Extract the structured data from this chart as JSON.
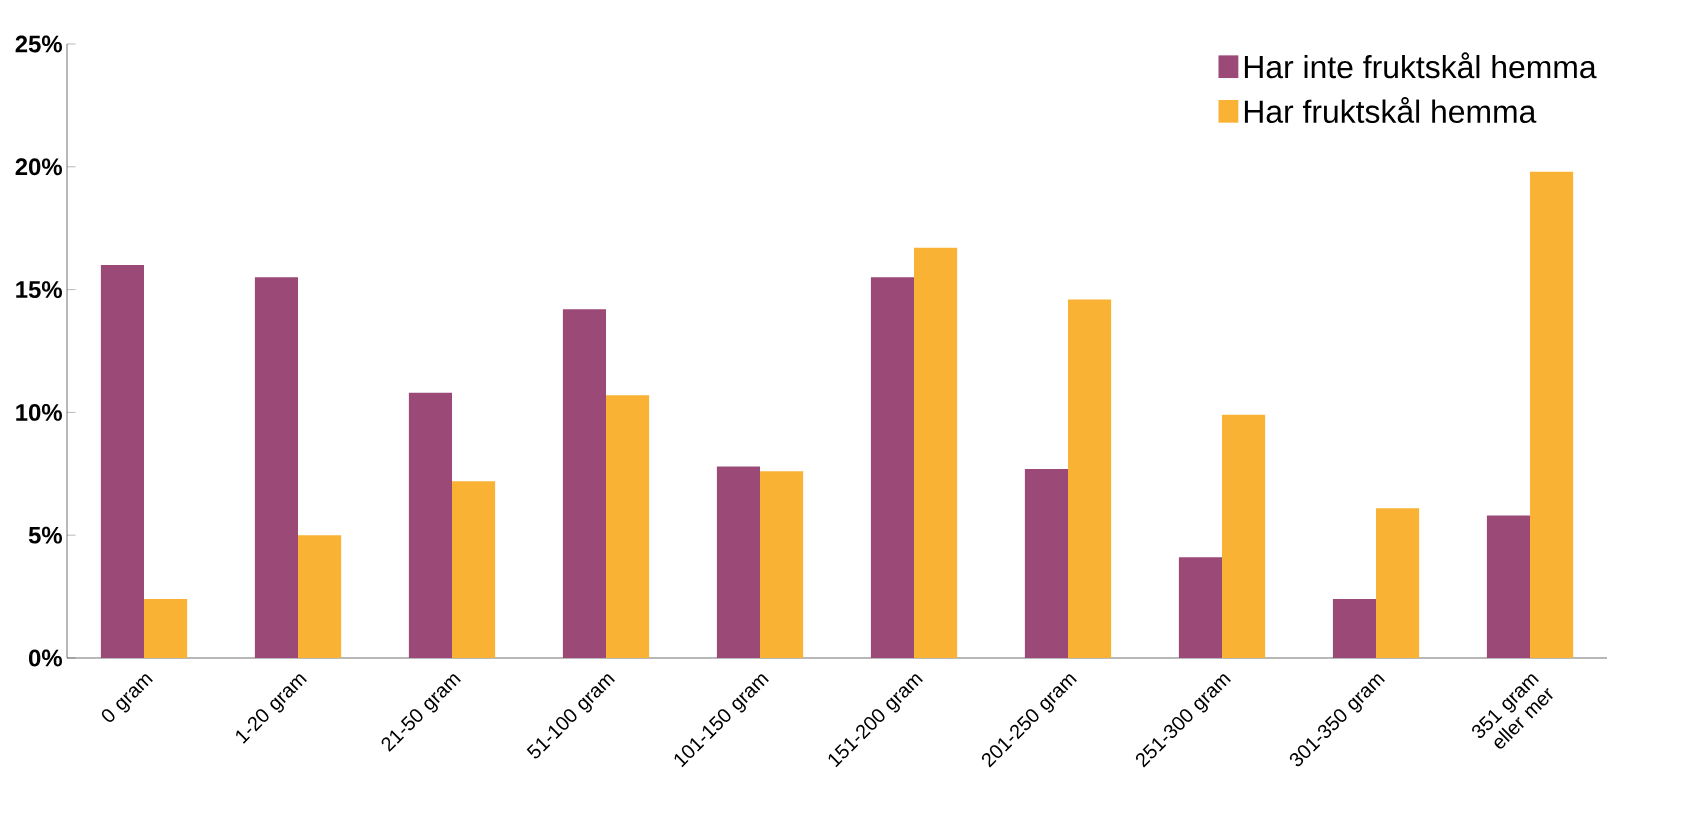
{
  "chart_data": {
    "type": "bar",
    "categories": [
      "0 gram",
      "1-20 gram",
      "21-50 gram",
      "51-100 gram",
      "101-150 gram",
      "151-200 gram",
      "201-250 gram",
      "251-300 gram",
      "301-350 gram",
      "351 gram eller mer"
    ],
    "series": [
      {
        "name": "Har inte fruktskål hemma",
        "color": "#9b4a78",
        "values": [
          16.0,
          15.5,
          10.8,
          14.2,
          7.8,
          15.5,
          7.7,
          4.1,
          2.4,
          5.8
        ]
      },
      {
        "name": "Har fruktskål hemma",
        "color": "#f9b233",
        "values": [
          2.4,
          5.0,
          7.2,
          10.7,
          7.6,
          16.7,
          14.6,
          9.9,
          6.1,
          19.8
        ]
      }
    ],
    "ylim": [
      0,
      25
    ],
    "yticks": [
      {
        "value": 0,
        "label": "0%"
      },
      {
        "value": 5,
        "label": "5%"
      },
      {
        "value": 10,
        "label": "10%"
      },
      {
        "value": 15,
        "label": "15%"
      },
      {
        "value": 20,
        "label": "20%"
      },
      {
        "value": 25,
        "label": "25%"
      }
    ],
    "legend": "top right",
    "grid": false
  }
}
